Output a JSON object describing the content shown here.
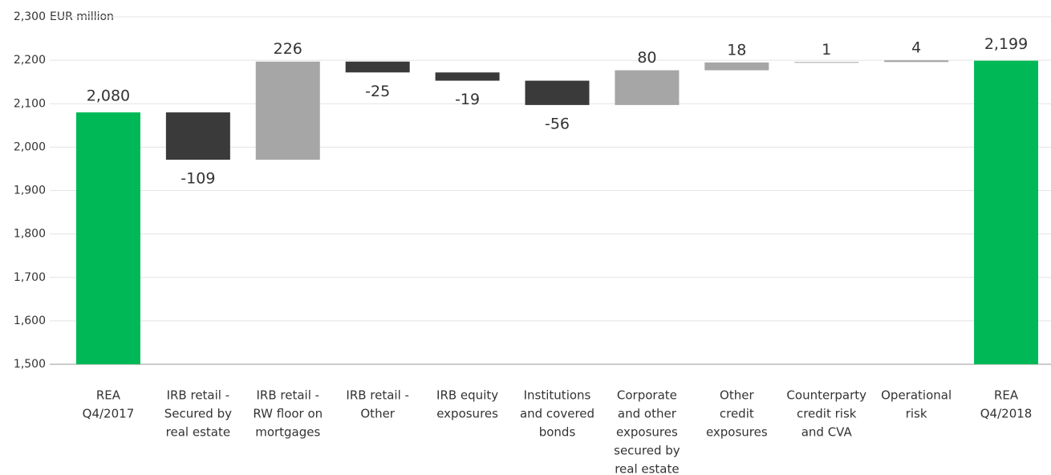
{
  "chart_data": {
    "type": "waterfall",
    "y_axis_label": "EUR million",
    "categories": [
      [
        "REA",
        "Q4/2017"
      ],
      [
        "IRB retail -",
        "Secured by",
        "real estate"
      ],
      [
        "IRB retail -",
        "RW floor on",
        "mortgages"
      ],
      [
        "IRB retail -",
        "Other"
      ],
      [
        "IRB equity",
        "exposures"
      ],
      [
        "Institutions",
        "and covered",
        "bonds"
      ],
      [
        "Corporate",
        "and other",
        "exposures",
        "secured by",
        "real estate"
      ],
      [
        "Other",
        "credit",
        "exposures"
      ],
      [
        "Counterparty",
        "credit risk",
        "and CVA"
      ],
      [
        "Operational",
        "risk"
      ],
      [
        "REA",
        "Q4/2018"
      ]
    ],
    "values": [
      2080,
      -109,
      226,
      -25,
      -19,
      -56,
      80,
      18,
      1,
      4,
      2199
    ],
    "value_labels": [
      "2,080",
      "-109",
      "226",
      "-25",
      "-19",
      "-56",
      "80",
      "18",
      "1",
      "4",
      "2,199"
    ],
    "totals": [
      0,
      10
    ],
    "colors": {
      "total": "#00b956",
      "increase": "#a6a6a6",
      "decrease": "#3a3a3a"
    },
    "ylim": [
      1500,
      2300
    ],
    "yticks": [
      {
        "value": 1500,
        "label": "1,500"
      },
      {
        "value": 1600,
        "label": "1,600"
      },
      {
        "value": 1700,
        "label": "1,700"
      },
      {
        "value": 1800,
        "label": "1,800"
      },
      {
        "value": 1900,
        "label": "1,900"
      },
      {
        "value": 2000,
        "label": "2,000"
      },
      {
        "value": 2100,
        "label": "2,100"
      },
      {
        "value": 2200,
        "label": "2,200"
      },
      {
        "value": 2300,
        "label": "2,300"
      }
    ],
    "grid": true
  }
}
